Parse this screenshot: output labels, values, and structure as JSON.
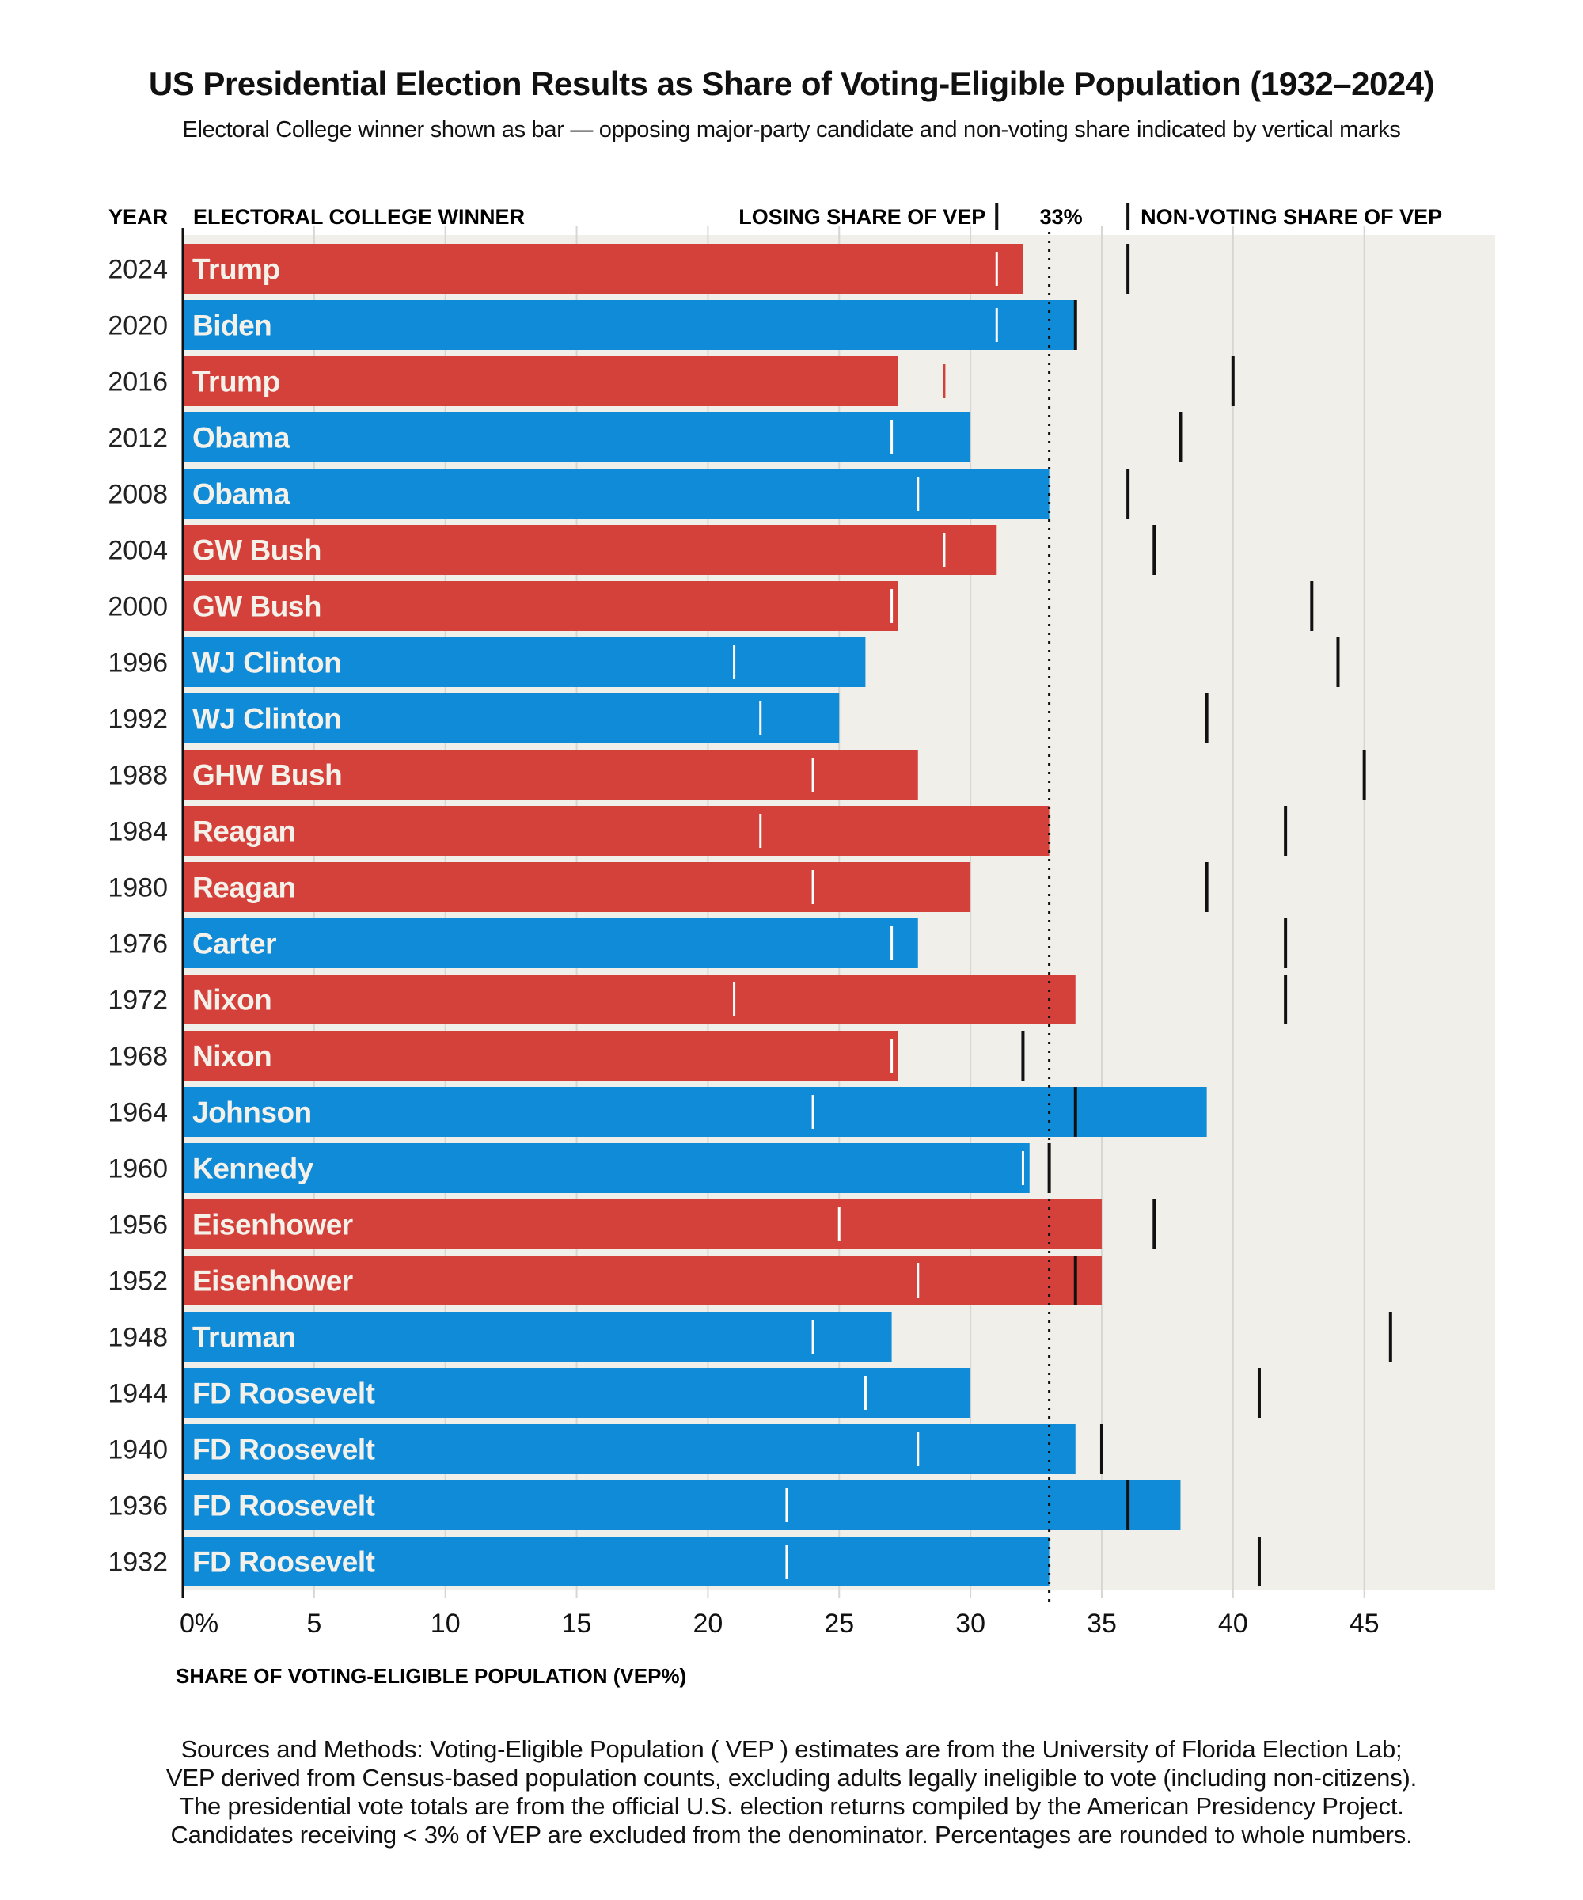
{
  "title": "US Presidential Election Results as Share of Voting-Eligible Population (1932–2024)",
  "subtitle": "Electoral College winner shown as bar — opposing major-party candidate and non-voting share indicated by vertical marks",
  "colors": {
    "republican": "#d4413a",
    "democrat": "#0f8bd8",
    "plot_background": "#f1efea",
    "nonvoting_mark": "#111111",
    "losing_mark_inside": "#ffffff"
  },
  "chart_data": {
    "type": "bar",
    "orientation": "horizontal",
    "column_headers": {
      "year": "YEAR",
      "winner": "ELECTORAL COLLEGE WINNER",
      "losing": "LOSING SHARE OF VEP",
      "reference": "33%",
      "nonvoting": "NON-VOTING SHARE OF VEP"
    },
    "xlabel": "SHARE OF VOTING-ELIGIBLE POPULATION (VEP%)",
    "xlim": [
      0,
      50
    ],
    "xticks": [
      "0%",
      "5",
      "10",
      "15",
      "20",
      "25",
      "30",
      "35",
      "40",
      "45"
    ],
    "xtick_values": [
      0,
      5,
      10,
      15,
      20,
      25,
      30,
      35,
      40,
      45
    ],
    "reference_line": 33,
    "grid": true,
    "rows": [
      {
        "year": "2024",
        "winner": "Trump",
        "party": "R",
        "winner_share": 32,
        "losing_share": 31,
        "nonvoting_share": 36
      },
      {
        "year": "2020",
        "winner": "Biden",
        "party": "D",
        "winner_share": 34,
        "losing_share": 31,
        "nonvoting_share": 34
      },
      {
        "year": "2016",
        "winner": "Trump",
        "party": "R",
        "winner_share": 27,
        "losing_share": 29,
        "nonvoting_share": 40
      },
      {
        "year": "2012",
        "winner": "Obama",
        "party": "D",
        "winner_share": 30,
        "losing_share": 27,
        "nonvoting_share": 38
      },
      {
        "year": "2008",
        "winner": "Obama",
        "party": "D",
        "winner_share": 33,
        "losing_share": 28,
        "nonvoting_share": 36
      },
      {
        "year": "2004",
        "winner": "GW Bush",
        "party": "R",
        "winner_share": 31,
        "losing_share": 29,
        "nonvoting_share": 37
      },
      {
        "year": "2000",
        "winner": "GW Bush",
        "party": "R",
        "winner_share": 27,
        "losing_share": 27,
        "nonvoting_share": 43
      },
      {
        "year": "1996",
        "winner": "WJ Clinton",
        "party": "D",
        "winner_share": 26,
        "losing_share": 21,
        "nonvoting_share": 44
      },
      {
        "year": "1992",
        "winner": "WJ Clinton",
        "party": "D",
        "winner_share": 25,
        "losing_share": 22,
        "nonvoting_share": 39
      },
      {
        "year": "1988",
        "winner": "GHW Bush",
        "party": "R",
        "winner_share": 28,
        "losing_share": 24,
        "nonvoting_share": 45
      },
      {
        "year": "1984",
        "winner": "Reagan",
        "party": "R",
        "winner_share": 33,
        "losing_share": 22,
        "nonvoting_share": 42
      },
      {
        "year": "1980",
        "winner": "Reagan",
        "party": "R",
        "winner_share": 30,
        "losing_share": 24,
        "nonvoting_share": 39
      },
      {
        "year": "1976",
        "winner": "Carter",
        "party": "D",
        "winner_share": 28,
        "losing_share": 27,
        "nonvoting_share": 42
      },
      {
        "year": "1972",
        "winner": "Nixon",
        "party": "R",
        "winner_share": 34,
        "losing_share": 21,
        "nonvoting_share": 42
      },
      {
        "year": "1968",
        "winner": "Nixon",
        "party": "R",
        "winner_share": 27,
        "losing_share": 27,
        "nonvoting_share": 32
      },
      {
        "year": "1964",
        "winner": "Johnson",
        "party": "D",
        "winner_share": 39,
        "losing_share": 24,
        "nonvoting_share": 34
      },
      {
        "year": "1960",
        "winner": "Kennedy",
        "party": "D",
        "winner_share": 32,
        "losing_share": 32,
        "nonvoting_share": 33
      },
      {
        "year": "1956",
        "winner": "Eisenhower",
        "party": "R",
        "winner_share": 35,
        "losing_share": 25,
        "nonvoting_share": 37
      },
      {
        "year": "1952",
        "winner": "Eisenhower",
        "party": "R",
        "winner_share": 35,
        "losing_share": 28,
        "nonvoting_share": 34
      },
      {
        "year": "1948",
        "winner": "Truman",
        "party": "D",
        "winner_share": 27,
        "losing_share": 24,
        "nonvoting_share": 46
      },
      {
        "year": "1944",
        "winner": "FD Roosevelt",
        "party": "D",
        "winner_share": 30,
        "losing_share": 26,
        "nonvoting_share": 41
      },
      {
        "year": "1940",
        "winner": "FD Roosevelt",
        "party": "D",
        "winner_share": 34,
        "losing_share": 28,
        "nonvoting_share": 35
      },
      {
        "year": "1936",
        "winner": "FD Roosevelt",
        "party": "D",
        "winner_share": 38,
        "losing_share": 23,
        "nonvoting_share": 36
      },
      {
        "year": "1932",
        "winner": "FD Roosevelt",
        "party": "D",
        "winner_share": 33,
        "losing_share": 23,
        "nonvoting_share": 41
      }
    ]
  },
  "footnote": [
    "Sources and Methods: Voting-Eligible Population ( VEP ) estimates are from the University of Florida Election Lab;",
    "VEP derived from Census-based population counts, excluding adults legally ineligible to vote (including non-citizens).",
    "The presidential vote totals are from the official U.S. election returns compiled by the American Presidency Project.",
    "Candidates receiving < 3% of VEP are excluded from the denominator. Percentages are rounded to whole numbers."
  ]
}
